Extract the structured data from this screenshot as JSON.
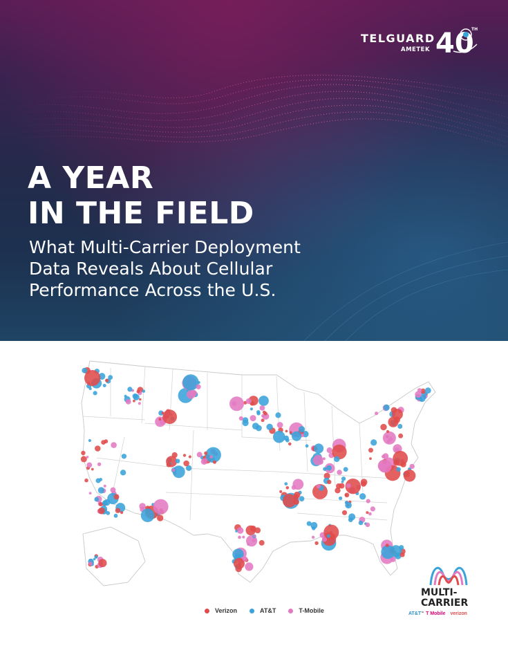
{
  "header": {
    "brand": "TELGUARD",
    "parent_brand": "AMETEK",
    "anniversary_number": "40",
    "anniversary_suffix": "TH"
  },
  "hero": {
    "title_lines": [
      "A YEAR",
      "IN THE FIELD"
    ],
    "subtitle_lines": [
      "What Multi-Carrier Deployment",
      "Data Reveals About Cellular",
      "Performance Across the U.S."
    ]
  },
  "legend": [
    {
      "label": "Verizon",
      "color": "#e04b4b"
    },
    {
      "label": "AT&T",
      "color": "#3aa3d9"
    },
    {
      "label": "T-Mobile",
      "color": "#e27ac2"
    }
  ],
  "product_logo": {
    "title_lines": [
      "MULTI-",
      "CARRIER"
    ],
    "trademark": "™",
    "carriers": [
      "AT&T",
      "T Mobile",
      "verizon"
    ]
  },
  "colors": {
    "verizon": "#e04b4b",
    "att": "#3aa3d9",
    "tmobile": "#e27ac2"
  },
  "icons": {
    "anniversary_badge": "globe-badge-icon",
    "product_logo": "m-wave-icon"
  }
}
